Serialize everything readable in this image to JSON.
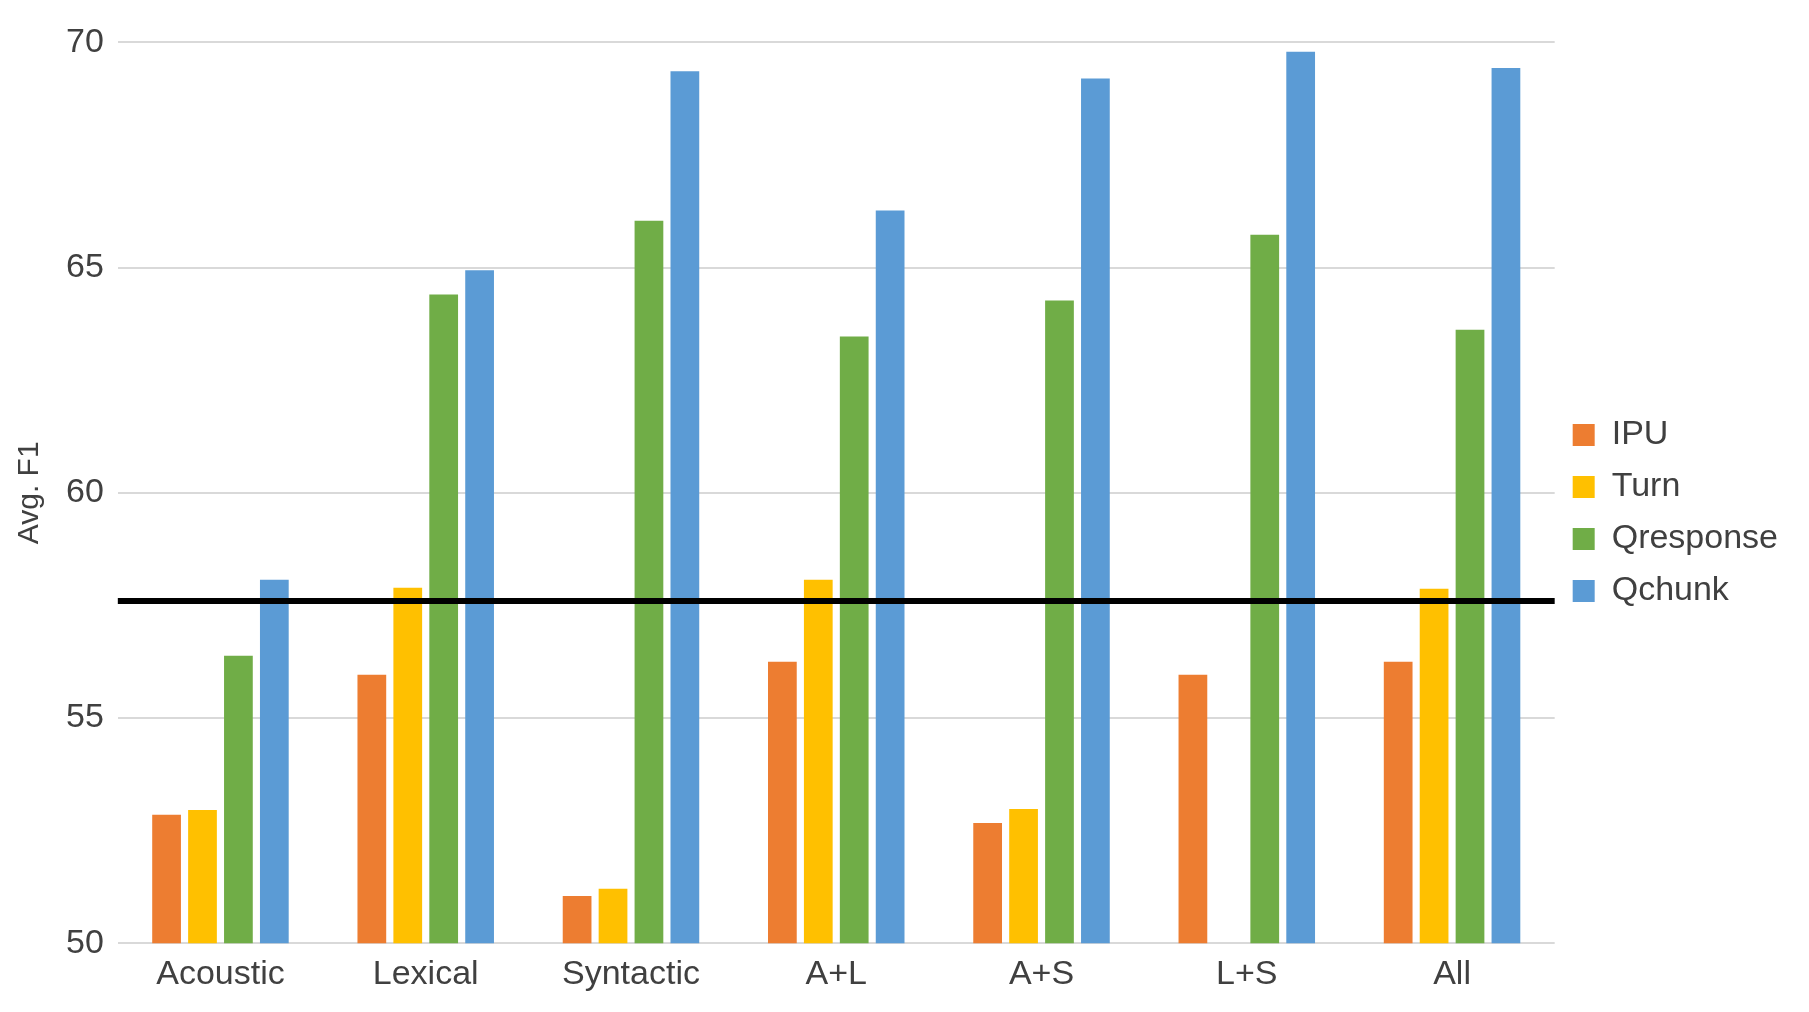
{
  "chart_data": {
    "type": "bar",
    "ylabel": "Avg. F1",
    "categories": [
      "Acoustic",
      "Lexical",
      "Syntactic",
      "A+L",
      "A+S",
      "L+S",
      "All"
    ],
    "series": [
      {
        "name": "IPU",
        "color": "#ed7d31",
        "values": [
          52.85,
          55.96,
          51.05,
          56.25,
          52.67,
          55.96,
          56.25
        ]
      },
      {
        "name": "Turn",
        "color": "#ffc000",
        "values": [
          52.96,
          57.89,
          51.21,
          58.07,
          52.98,
          null,
          57.87
        ]
      },
      {
        "name": "Qresponse",
        "color": "#70ad47",
        "values": [
          56.38,
          64.4,
          66.04,
          63.47,
          64.27,
          65.73,
          63.62
        ]
      },
      {
        "name": "Qchunk",
        "color": "#5b9bd5",
        "values": [
          58.07,
          64.94,
          69.36,
          66.27,
          69.2,
          69.79,
          69.43
        ]
      }
    ],
    "ylim": [
      50,
      70
    ],
    "yticks": [
      50,
      55,
      60,
      65,
      70
    ],
    "grid": "y",
    "legend": "right",
    "ref_lines": [
      {
        "axis": "y",
        "value": 57.6,
        "color": "#000000"
      }
    ]
  }
}
